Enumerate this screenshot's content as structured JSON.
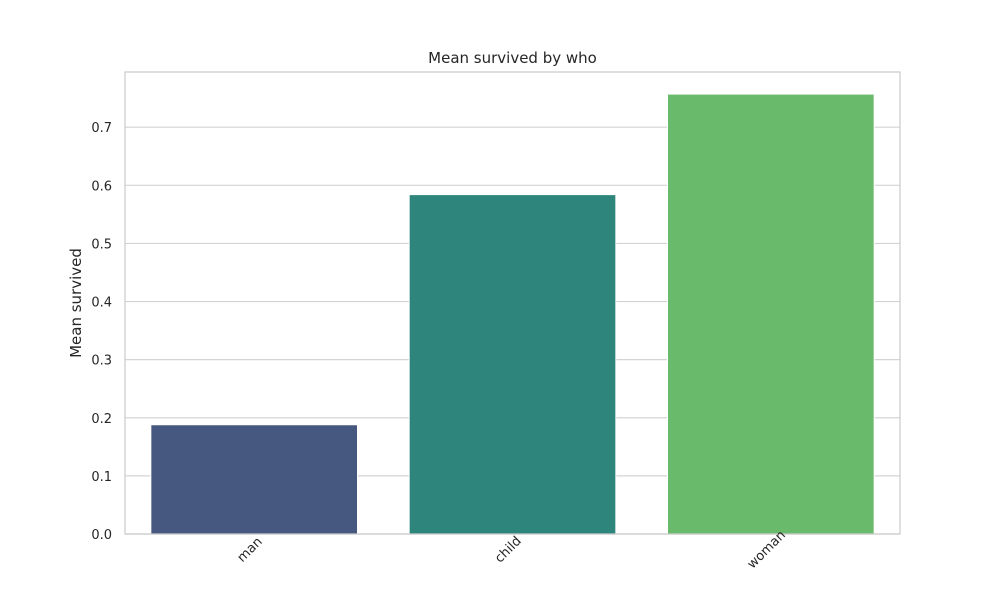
{
  "chart_data": {
    "type": "bar",
    "title": "Mean survived by who",
    "xlabel": "",
    "ylabel": "Mean survived",
    "categories": [
      "man",
      "child",
      "woman"
    ],
    "values": [
      0.188,
      0.584,
      0.757
    ],
    "colors": [
      "#46587f",
      "#2e857b",
      "#6aba6b"
    ],
    "ylim": [
      0,
      0.795
    ],
    "yticks": [
      0.0,
      0.1,
      0.2,
      0.3,
      0.4,
      0.5,
      0.6,
      0.7
    ],
    "ytick_labels": [
      "0.0",
      "0.1",
      "0.2",
      "0.3",
      "0.4",
      "0.5",
      "0.6",
      "0.7"
    ],
    "grid": true,
    "grid_axis": "y",
    "legend": "none",
    "xtick_rotation": "45deg"
  }
}
